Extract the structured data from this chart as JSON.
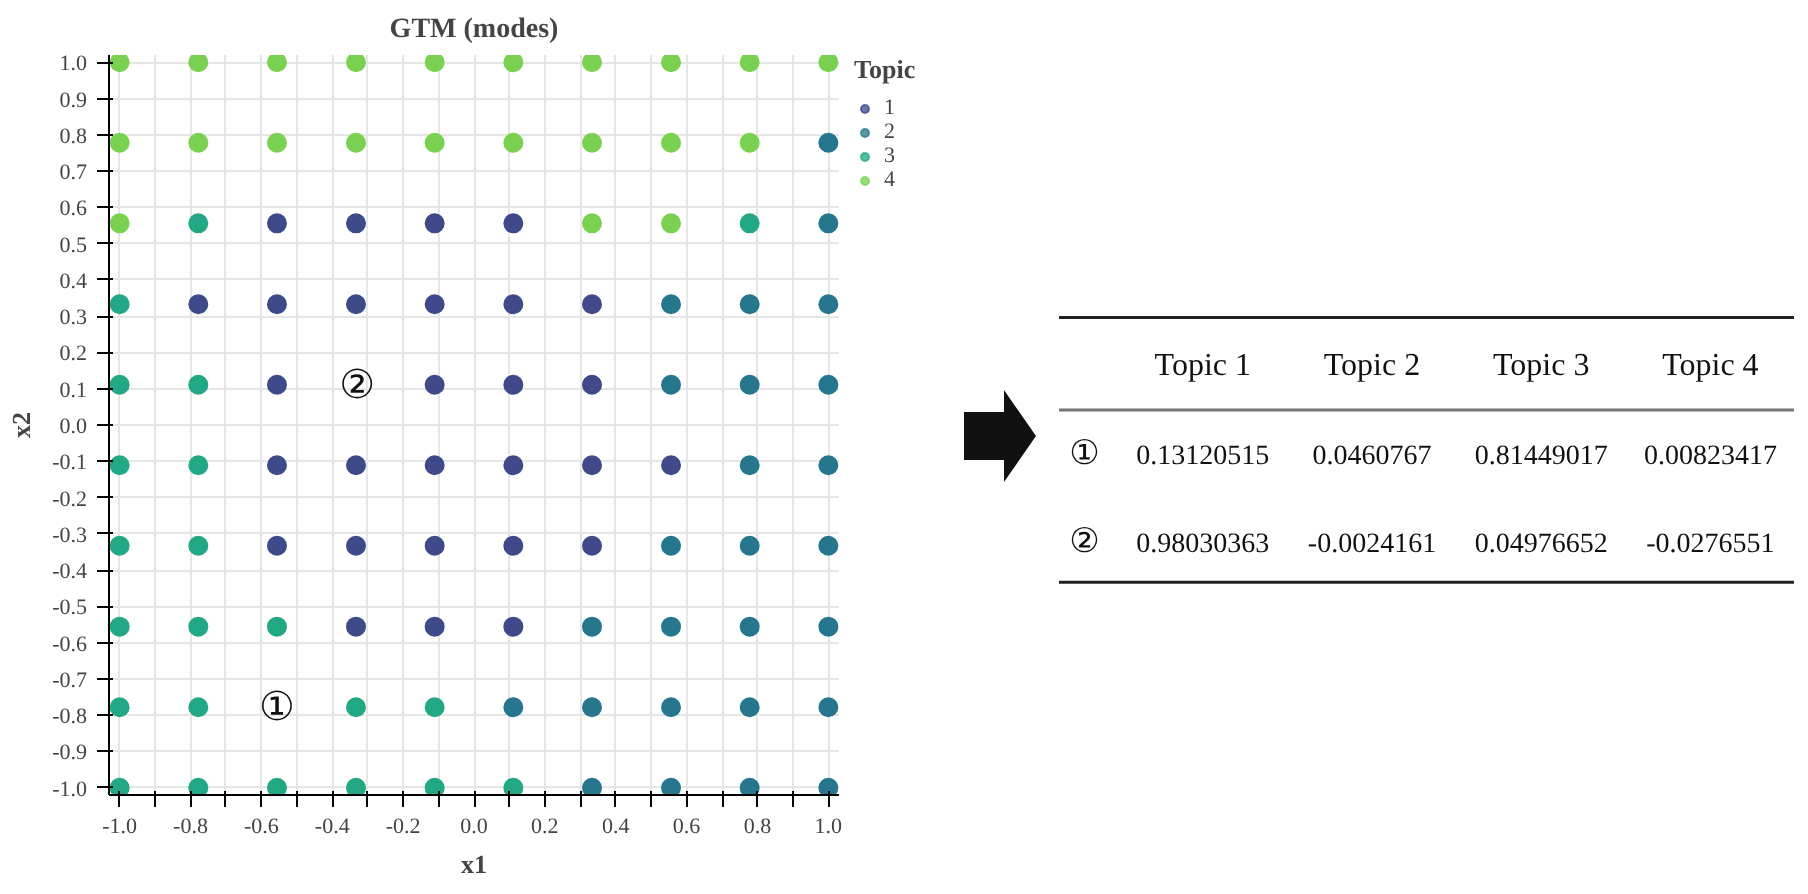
{
  "chart_data": [
    {
      "type": "scatter",
      "title": "GTM (modes)",
      "xlabel": "x1",
      "ylabel": "x2",
      "legend_title": "Topic",
      "legend": "right",
      "grid": true,
      "marker": "circle",
      "xlim": [
        -1.03,
        1.03
      ],
      "ylim": [
        -1.02,
        1.02
      ],
      "xticks": [
        {
          "value": -1.0,
          "label": "-1.0"
        },
        {
          "value": -0.9,
          "label": null
        },
        -0.8,
        {
          "value": -0.7,
          "label": null
        },
        -0.6,
        {
          "value": -0.5,
          "label": null
        },
        -0.4,
        {
          "value": -0.3,
          "label": null
        },
        -0.2,
        {
          "value": -0.1,
          "label": null
        },
        {
          "value": 0.0,
          "label": "0.0"
        },
        {
          "value": 0.1,
          "label": null
        },
        0.2,
        {
          "value": 0.3,
          "label": null
        },
        0.4,
        {
          "value": 0.5,
          "label": null
        },
        0.6,
        {
          "value": 0.7,
          "label": null
        },
        0.8,
        {
          "value": 0.9,
          "label": null
        },
        {
          "value": 1.0,
          "label": "1.0"
        }
      ],
      "yticks": [
        {
          "value": -1.0,
          "label": "-1.0"
        },
        -0.9,
        -0.8,
        -0.7,
        -0.6,
        -0.5,
        -0.4,
        -0.3,
        -0.2,
        -0.1,
        {
          "value": 0.0,
          "label": "0.0"
        },
        0.1,
        0.2,
        0.3,
        0.4,
        0.5,
        0.6,
        0.7,
        0.8,
        0.9,
        {
          "value": 1.0,
          "label": "1.0"
        }
      ],
      "series": [
        {
          "name": "1",
          "color": "#3e4a89",
          "x": [
            -0.556,
            -0.333,
            -0.111,
            0.111,
            -0.778,
            -0.556,
            -0.333,
            -0.111,
            0.111,
            0.333,
            -0.556,
            -0.111,
            0.111,
            0.333,
            -0.556,
            -0.333,
            -0.111,
            0.111,
            0.333,
            0.556,
            -0.556,
            -0.333,
            -0.111,
            0.111,
            0.333,
            -0.333,
            -0.111,
            0.111
          ],
          "values": [
            0.556,
            0.556,
            0.556,
            0.556,
            0.333,
            0.333,
            0.333,
            0.333,
            0.333,
            0.333,
            0.111,
            0.111,
            0.111,
            0.111,
            -0.111,
            -0.111,
            -0.111,
            -0.111,
            -0.111,
            -0.111,
            -0.333,
            -0.333,
            -0.333,
            -0.333,
            -0.333,
            -0.556,
            -0.556,
            -0.556
          ]
        },
        {
          "name": "2",
          "color": "#26778d",
          "x": [
            1.0,
            1.0,
            0.556,
            0.778,
            1.0,
            0.556,
            0.778,
            1.0,
            0.778,
            1.0,
            0.556,
            0.778,
            1.0,
            0.333,
            0.556,
            0.778,
            1.0,
            0.111,
            0.333,
            0.556,
            0.778,
            1.0,
            0.333,
            0.556,
            0.778,
            1.0
          ],
          "values": [
            0.778,
            0.556,
            0.333,
            0.333,
            0.333,
            0.111,
            0.111,
            0.111,
            -0.111,
            -0.111,
            -0.333,
            -0.333,
            -0.333,
            -0.556,
            -0.556,
            -0.556,
            -0.556,
            -0.778,
            -0.778,
            -0.778,
            -0.778,
            -0.778,
            -1.0,
            -1.0,
            -1.0,
            -1.0
          ]
        },
        {
          "name": "3",
          "color": "#22a884",
          "x": [
            -0.778,
            0.778,
            -1.0,
            -1.0,
            -0.778,
            -1.0,
            -0.778,
            -1.0,
            -0.778,
            -1.0,
            -0.778,
            -0.556,
            -1.0,
            -0.778,
            -0.333,
            -0.111,
            -1.0,
            -0.778,
            -0.556,
            -0.333,
            -0.111,
            0.111
          ],
          "values": [
            0.556,
            0.556,
            0.333,
            0.111,
            0.111,
            -0.111,
            -0.111,
            -0.333,
            -0.333,
            -0.556,
            -0.556,
            -0.556,
            -0.778,
            -0.778,
            -0.778,
            -0.778,
            -1.0,
            -1.0,
            -1.0,
            -1.0,
            -1.0,
            -1.0
          ]
        },
        {
          "name": "4",
          "color": "#7ad151",
          "x": [
            -1.0,
            -0.778,
            -0.556,
            -0.333,
            -0.111,
            0.111,
            0.333,
            0.556,
            0.778,
            1.0,
            -1.0,
            -0.778,
            -0.556,
            -0.333,
            -0.111,
            0.111,
            0.333,
            0.556,
            0.778,
            -1.0,
            0.333,
            0.556
          ],
          "values": [
            1.0,
            1.0,
            1.0,
            1.0,
            1.0,
            1.0,
            1.0,
            1.0,
            1.0,
            1.0,
            0.778,
            0.778,
            0.778,
            0.778,
            0.778,
            0.778,
            0.778,
            0.778,
            0.778,
            0.556,
            0.556,
            0.556
          ]
        }
      ],
      "annotations": [
        "①",
        "②"
      ]
    },
    {
      "type": "other",
      "categories": [
        "Topic 1",
        "Topic 2",
        "Topic 3",
        "Topic 4"
      ],
      "y_categories": [
        "①",
        "②"
      ],
      "annotations": [
        "0.13120515",
        "0.0460767",
        "0.81449017",
        "0.00823417",
        "0.98030363",
        "-0.0024161",
        "0.04976652",
        "-0.0276551"
      ]
    }
  ]
}
